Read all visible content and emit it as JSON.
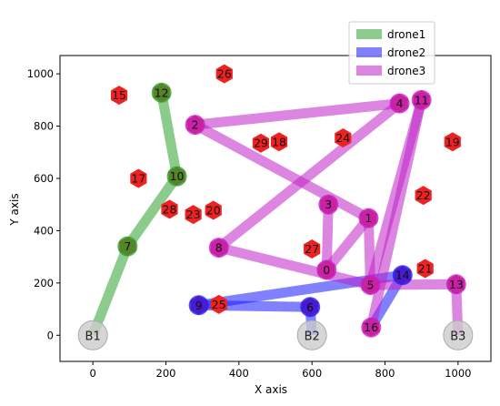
{
  "chart_data": {
    "type": "scatter",
    "title": "",
    "xlabel": "X axis",
    "ylabel": "Y axis",
    "xlim": [
      -90,
      1090
    ],
    "ylim": [
      -100,
      1070
    ],
    "xticks": [
      0,
      200,
      400,
      600,
      800,
      1000
    ],
    "yticks": [
      0,
      200,
      400,
      600,
      800,
      1000
    ],
    "grid": false,
    "legend": {
      "placement": "top-right"
    },
    "bases": [
      {
        "label": "B1",
        "x": 0,
        "y": 0
      },
      {
        "label": "B2",
        "x": 600,
        "y": 0
      },
      {
        "label": "B3",
        "x": 1000,
        "y": 0
      }
    ],
    "targets": [
      {
        "label": "0",
        "x": 640,
        "y": 250
      },
      {
        "label": "1",
        "x": 755,
        "y": 448
      },
      {
        "label": "2",
        "x": 280,
        "y": 805
      },
      {
        "label": "3",
        "x": 645,
        "y": 500
      },
      {
        "label": "4",
        "x": 840,
        "y": 887
      },
      {
        "label": "5",
        "x": 760,
        "y": 192
      },
      {
        "label": "6",
        "x": 595,
        "y": 108
      },
      {
        "label": "7",
        "x": 95,
        "y": 340
      },
      {
        "label": "8",
        "x": 345,
        "y": 335
      },
      {
        "label": "9",
        "x": 290,
        "y": 115
      },
      {
        "label": "10",
        "x": 230,
        "y": 608
      },
      {
        "label": "11",
        "x": 900,
        "y": 900
      },
      {
        "label": "12",
        "x": 188,
        "y": 928
      },
      {
        "label": "13",
        "x": 995,
        "y": 195
      },
      {
        "label": "14",
        "x": 848,
        "y": 230
      },
      {
        "label": "15",
        "x": 72,
        "y": 918
      },
      {
        "label": "16",
        "x": 762,
        "y": 30
      },
      {
        "label": "17",
        "x": 125,
        "y": 600
      },
      {
        "label": "18",
        "x": 510,
        "y": 740
      },
      {
        "label": "19",
        "x": 985,
        "y": 740
      },
      {
        "label": "20",
        "x": 330,
        "y": 478
      },
      {
        "label": "21",
        "x": 910,
        "y": 255
      },
      {
        "label": "22",
        "x": 905,
        "y": 535
      },
      {
        "label": "23",
        "x": 275,
        "y": 462
      },
      {
        "label": "24",
        "x": 685,
        "y": 755
      },
      {
        "label": "25",
        "x": 345,
        "y": 118
      },
      {
        "label": "26",
        "x": 360,
        "y": 1000
      },
      {
        "label": "27",
        "x": 600,
        "y": 330
      },
      {
        "label": "28",
        "x": 210,
        "y": 482
      },
      {
        "label": "29",
        "x": 460,
        "y": 735
      }
    ],
    "series": [
      {
        "name": "drone1",
        "color": "#2ca02c",
        "path": [
          "B1",
          "7",
          "10",
          "12"
        ],
        "visited": [
          "7",
          "10",
          "12"
        ]
      },
      {
        "name": "drone2",
        "color": "#1a1aff",
        "path": [
          "B2",
          "6",
          "9",
          "14",
          "16"
        ],
        "visited": [
          "6",
          "9",
          "14"
        ]
      },
      {
        "name": "drone3",
        "color": "#c020c8",
        "path": [
          "B3",
          "13",
          "5",
          "8",
          "4",
          "2",
          "1",
          "5",
          "11",
          "16"
        ],
        "visited": [
          "0",
          "1",
          "2",
          "3",
          "4",
          "5",
          "8",
          "11",
          "13",
          "16"
        ]
      }
    ],
    "extra_segments": [
      {
        "series": "drone3",
        "from": "0",
        "to": "1"
      },
      {
        "series": "drone3",
        "from": "3",
        "to": "0"
      }
    ],
    "colors": {
      "target": "#ee2222",
      "base": "#cccccc"
    }
  }
}
